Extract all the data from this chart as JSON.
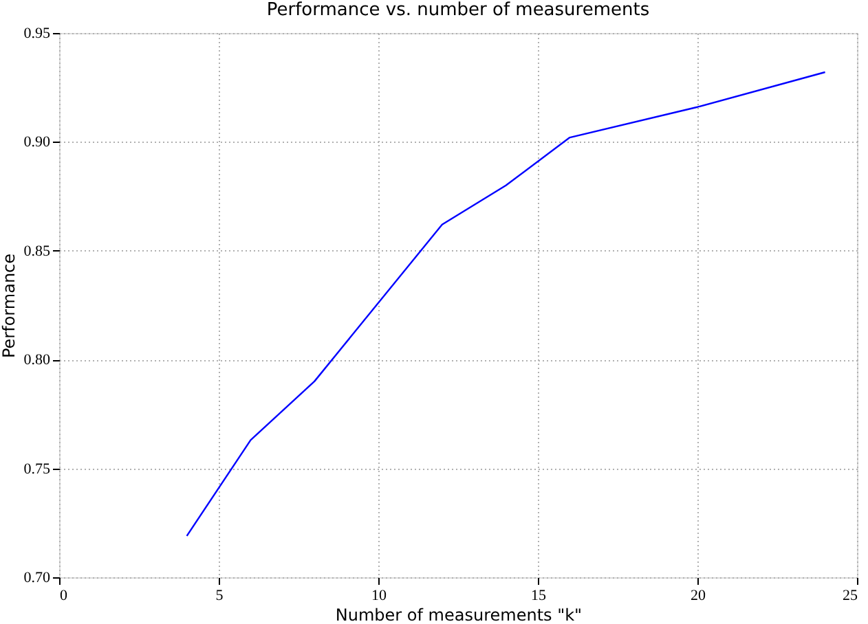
{
  "chart_data": {
    "type": "line",
    "title": "Performance vs. number of measurements",
    "xlabel": "Number of measurements \"k\"",
    "ylabel": "Performance",
    "x": [
      4,
      6,
      8,
      12,
      14,
      16,
      20,
      24
    ],
    "series": [
      {
        "color": "#0000ff",
        "values": [
          0.719,
          0.763,
          0.79,
          0.862,
          0.88,
          0.902,
          0.916,
          0.932
        ]
      }
    ],
    "xlim": [
      0,
      25
    ],
    "xticks": [
      0,
      5,
      10,
      15,
      20,
      25
    ],
    "ylim": [
      0.7,
      0.95
    ],
    "yticks": [
      {
        "value": 0.7,
        "label": "0.70"
      },
      0.75,
      {
        "value": 0.8,
        "label": "0.80"
      },
      0.85,
      {
        "value": 0.9,
        "label": "0.90"
      },
      0.95
    ],
    "grid": true,
    "legend": false,
    "marker": "none",
    "line_style": "solid"
  }
}
